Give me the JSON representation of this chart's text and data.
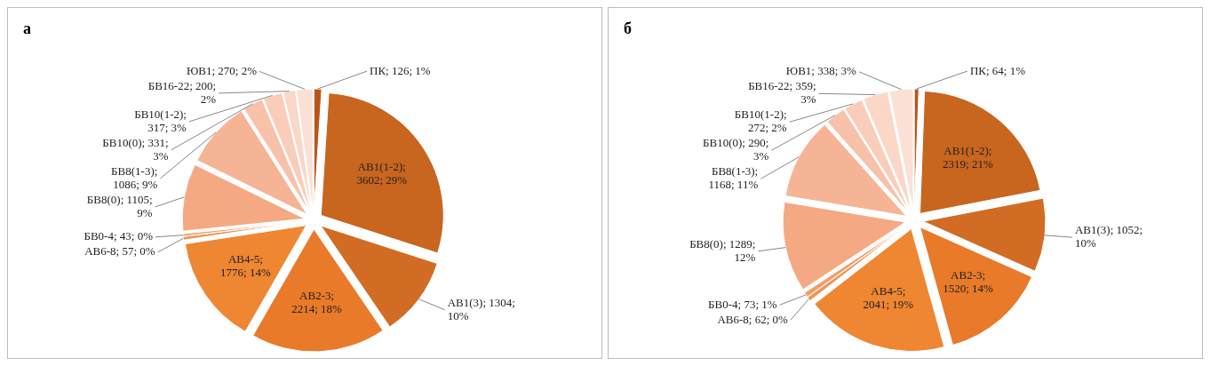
{
  "chart_data": [
    {
      "type": "pie",
      "title": "а",
      "categories": [
        "ПК",
        "АВ1(1-2)",
        "АВ1(3)",
        "АВ2-3",
        "АВ4-5",
        "АВ6-8",
        "БВ0-4",
        "БВ8(0)",
        "БВ8(1-3)",
        "БВ10(0)",
        "БВ10(1-2)",
        "БВ16-22",
        "ЮВ1"
      ],
      "values": [
        126,
        3602,
        1304,
        2214,
        1776,
        57,
        43,
        1105,
        1086,
        331,
        317,
        200,
        270
      ],
      "value_labels": [
        "; 126; 1%",
        "; 3602; 29%",
        "; 1304; 10%",
        "; 2214; 18%",
        "; 1776; 14%",
        "; 57; 0%",
        "; 43; 0%",
        "; 1105; 9%",
        "; 1086; 9%",
        "; 331; 3%",
        "; 317; 3%",
        "; 200; 2%",
        "; 270; 2%"
      ],
      "colors": [
        "#b8561a",
        "#c8651f",
        "#d26c24",
        "#e87a2a",
        "#ee8632",
        "#f29452",
        "#f39d68",
        "#f5a983",
        "#f6b496",
        "#f8c2aa",
        "#f9cdb9",
        "#fad7c7",
        "#fbe1d5"
      ]
    },
    {
      "type": "pie",
      "title": "б",
      "categories": [
        "ПК",
        "АВ1(1-2)",
        "АВ1(3)",
        "АВ2-3",
        "АВ4-5",
        "АВ6-8",
        "БВ0-4",
        "БВ8(0)",
        "БВ8(1-3)",
        "БВ10(0)",
        "БВ10(1-2)",
        "БВ16-22",
        "ЮВ1"
      ],
      "values": [
        64,
        2319,
        1052,
        1520,
        2041,
        62,
        73,
        1289,
        1168,
        290,
        272,
        359,
        338
      ],
      "value_labels": [
        "; 64; 1%",
        "; 2319; 21%",
        "; 1052; 10%",
        "; 1520; 14%",
        "; 2041; 19%",
        "; 62; 0%",
        "; 73; 1%",
        "; 1289; 12%",
        "; 1168; 11%",
        "; 290; 3%",
        "; 272; 2%",
        "; 359; 3%",
        "; 338; 3%"
      ],
      "colors": [
        "#b8561a",
        "#c8651f",
        "#d26c24",
        "#e87a2a",
        "#ee8632",
        "#f29452",
        "#f39d68",
        "#f5a983",
        "#f6b496",
        "#f8c2aa",
        "#f9cdb9",
        "#fad7c7",
        "#fbe1d5"
      ]
    }
  ]
}
